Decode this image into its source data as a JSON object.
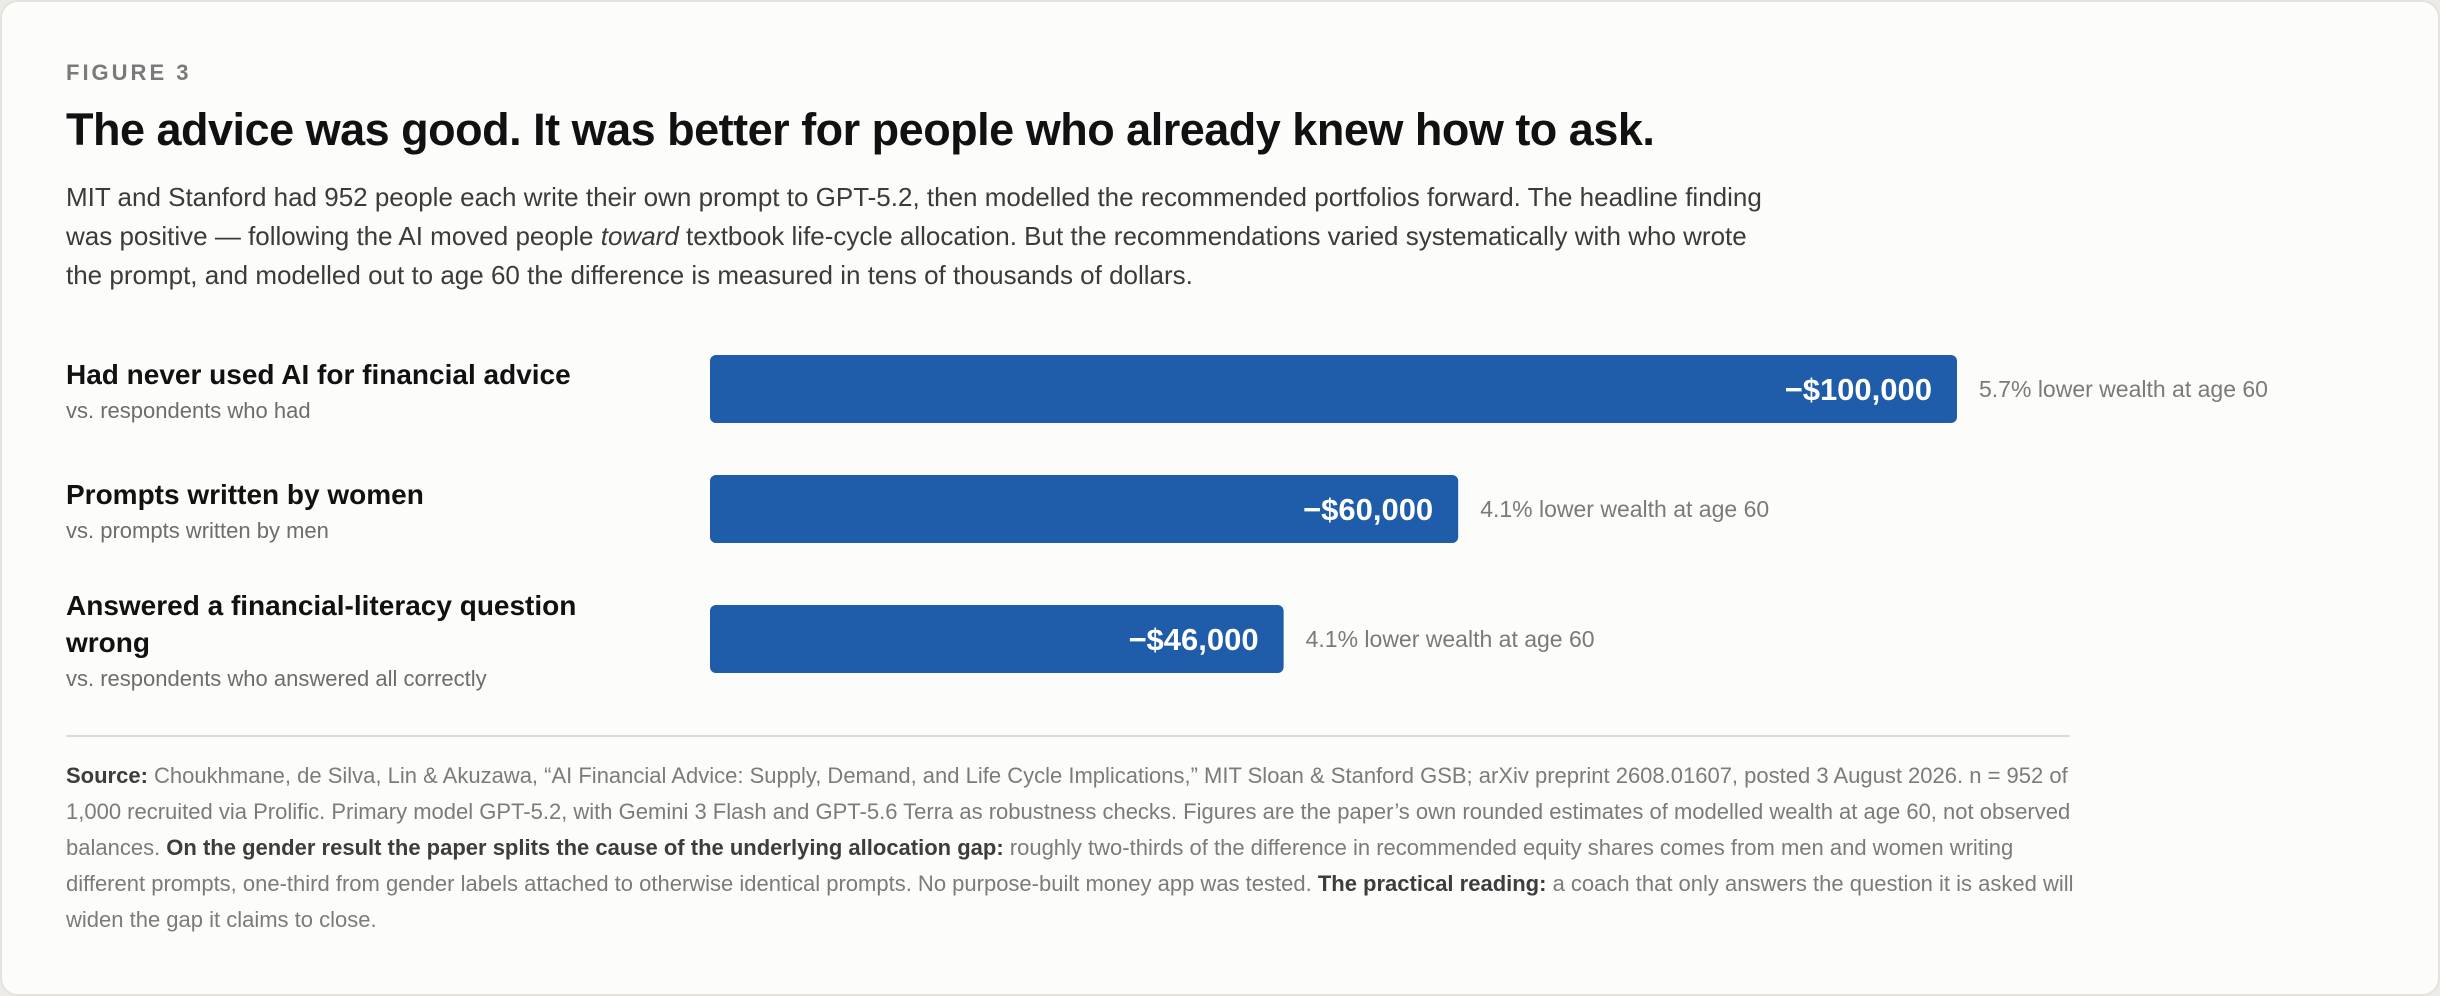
{
  "figure_label": "FIGURE 3",
  "title": "The advice was good. It was better for people who already knew how to ask.",
  "subtitle": {
    "part1": "MIT and Stanford had 952 people each write their own prompt to GPT-5.2, then modelled the recommended portfolios forward. The headline finding was positive — following the AI moved people ",
    "emph": "toward",
    "part2": " textbook life-cycle allocation. But the recommendations varied systematically with who wrote the prompt, and modelled out to age 60 the difference is measured in tens of thousands of dollars."
  },
  "colors": {
    "bar": "#1f5ca9",
    "bar_label": "#ffffff",
    "annotation": "#7a7a7a"
  },
  "chart_data": {
    "type": "bar",
    "orientation": "horizontal",
    "categories": [
      "Had never used AI for financial advice",
      "Prompts written by women",
      "Answered a financial-literacy question wrong"
    ],
    "comparisons": [
      "vs. respondents who had",
      "vs. prompts written by men",
      "vs. respondents who answered all correctly"
    ],
    "values": [
      -100000,
      -60000,
      -46000
    ],
    "value_labels": [
      "−$100,000",
      "−$60,000",
      "−$46,000"
    ],
    "annotations": [
      "5.7% lower wealth at age 60",
      "4.1% lower wealth at age 60",
      "4.1% lower wealth at age 60"
    ],
    "xlim": [
      0,
      100000
    ]
  },
  "source": {
    "source_label": "Source:",
    "text1": " Choukhmane, de Silva, Lin & Akuzawa, “AI Financial Advice: Supply, Demand, and Life Cycle Implications,” MIT Sloan & Stanford GSB; arXiv preprint 2608.01607, posted 3 August 2026. n = 952 of 1,000 recruited via Prolific. Primary model GPT-5.2, with Gemini 3 Flash and GPT-5.6 Terra as robustness checks. Figures are the paper’s own rounded estimates of modelled wealth at age 60, not observed balances. ",
    "bold2": "On the gender result the paper splits the cause of the underlying allocation gap:",
    "text2": " roughly two-thirds of the difference in recommended equity shares comes from men and women writing different prompts, one-third from gender labels attached to otherwise identical prompts. No purpose-built money app was tested. ",
    "bold3": "The practical reading:",
    "text3": " a coach that only answers the question it is asked will widen the gap it claims to close."
  }
}
